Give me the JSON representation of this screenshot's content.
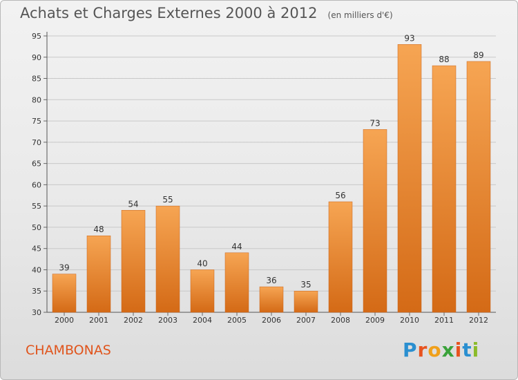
{
  "header": {
    "title": "Achats et Charges Externes 2000 à 2012",
    "unit": "(en milliers d'€)"
  },
  "footer": {
    "commune": "CHAMBONAS",
    "logo_letters": [
      "P",
      "r",
      "o",
      "x",
      "i",
      "t",
      "i"
    ]
  },
  "colors": {
    "bar_top": "#f6a553",
    "bar_bottom": "#d46a16",
    "commune_text": "#e0541c",
    "grid": "#c8c8c8"
  },
  "chart_data": {
    "type": "bar",
    "title": "Achats et Charges Externes 2000 à 2012",
    "subtitle": "(en milliers d'€)",
    "categories": [
      "2000",
      "2001",
      "2002",
      "2003",
      "2004",
      "2005",
      "2006",
      "2007",
      "2008",
      "2009",
      "2010",
      "2011",
      "2012"
    ],
    "values": [
      39,
      48,
      54,
      55,
      40,
      44,
      36,
      35,
      56,
      73,
      93,
      88,
      89
    ],
    "ylim": [
      30,
      95
    ],
    "yticks": [
      30,
      35,
      40,
      45,
      50,
      55,
      60,
      65,
      70,
      75,
      80,
      85,
      90,
      95
    ],
    "grid": true,
    "data_labels": true,
    "legend": "none"
  }
}
